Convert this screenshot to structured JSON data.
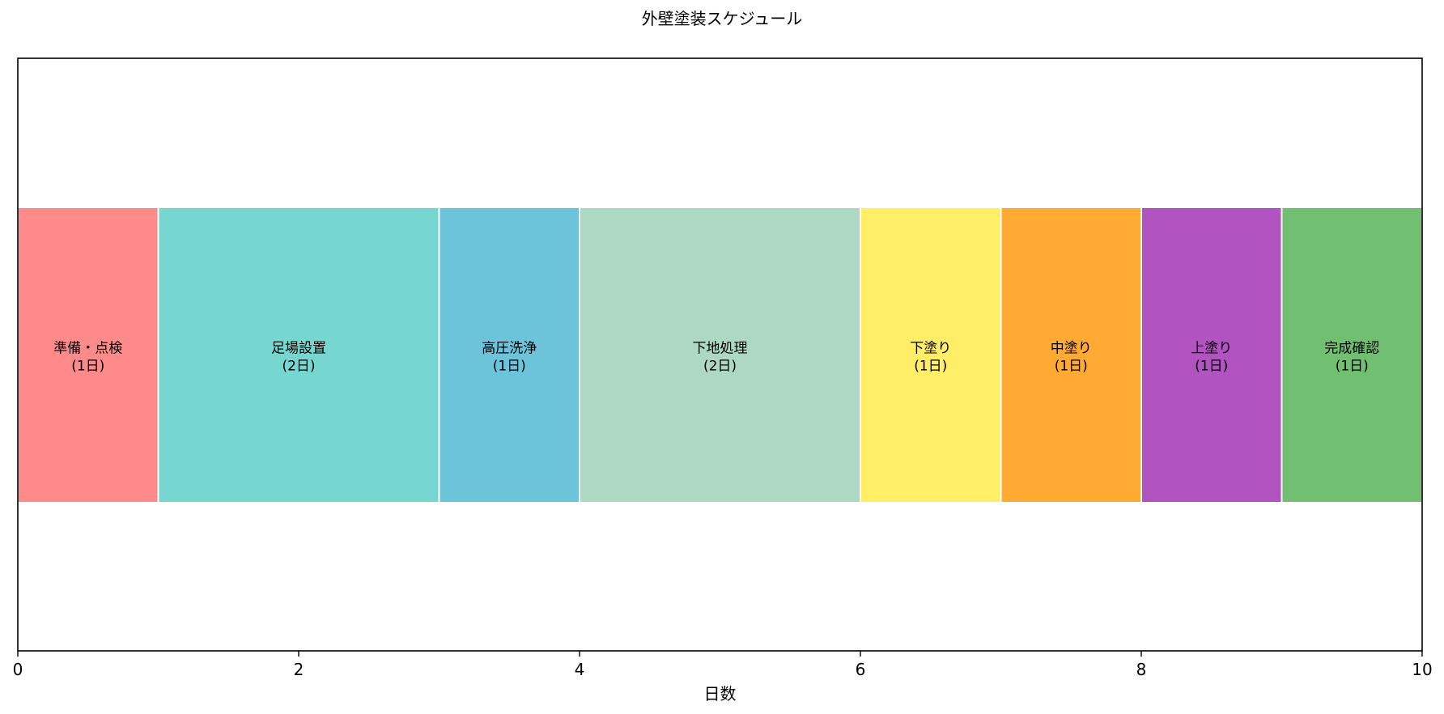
{
  "chart_data": {
    "type": "bar",
    "orientation": "horizontal-stacked",
    "title": "外壁塗装スケジュール",
    "xlabel": "日数",
    "ylabel": "",
    "xlim": [
      0,
      10
    ],
    "xticks": [
      0,
      2,
      4,
      6,
      8,
      10
    ],
    "grid": false,
    "tasks": [
      {
        "name": "準備・点検",
        "start": 0,
        "duration": 1,
        "duration_label": "(1日)",
        "color": "#FF8A8A"
      },
      {
        "name": "足場設置",
        "start": 1,
        "duration": 2,
        "duration_label": "(2日)",
        "color": "#76D7D0"
      },
      {
        "name": "高圧洗浄",
        "start": 3,
        "duration": 1,
        "duration_label": "(1日)",
        "color": "#6BC4DA"
      },
      {
        "name": "下地処理",
        "start": 4,
        "duration": 2,
        "duration_label": "(2日)",
        "color": "#ADD8C3"
      },
      {
        "name": "下塗り",
        "start": 6,
        "duration": 1,
        "duration_label": "(1日)",
        "color": "#FFEE66"
      },
      {
        "name": "中塗り",
        "start": 7,
        "duration": 1,
        "duration_label": "(1日)",
        "color": "#FFAA33"
      },
      {
        "name": "上塗り",
        "start": 8,
        "duration": 1,
        "duration_label": "(1日)",
        "color": "#B153C0"
      },
      {
        "name": "完成確認",
        "start": 9,
        "duration": 1,
        "duration_label": "(1日)",
        "color": "#71BF71"
      }
    ]
  }
}
